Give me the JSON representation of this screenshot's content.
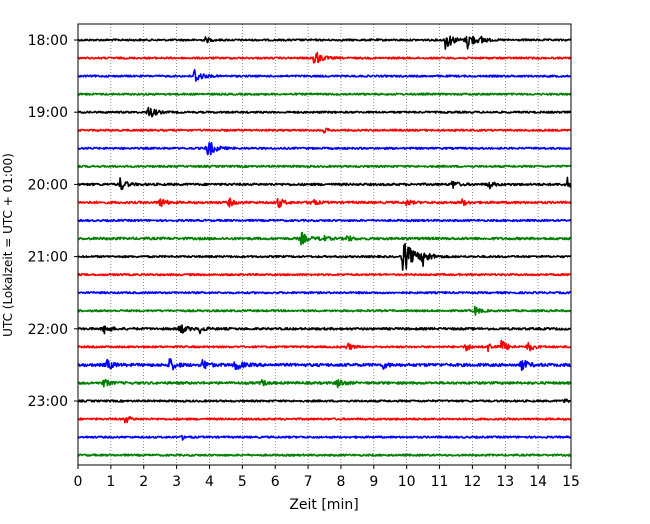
{
  "chart_data": {
    "type": "line",
    "xlabel": "Zeit  [min]",
    "ylabel": "UTC (Lokalzeit = UTC + 01:00)",
    "xlim": [
      0,
      15
    ],
    "x_ticks": [
      0,
      1,
      2,
      3,
      4,
      5,
      6,
      7,
      8,
      9,
      10,
      11,
      12,
      13,
      14,
      15
    ],
    "x_tick_labels": [
      "0",
      "1",
      "2",
      "3",
      "4",
      "5",
      "6",
      "7",
      "8",
      "9",
      "10",
      "11",
      "12",
      "13",
      "14",
      "15"
    ],
    "y_tick_labels": [
      "18:00",
      "19:00",
      "20:00",
      "21:00",
      "22:00",
      "23:00"
    ],
    "grid": "vertical dotted lines at each minute",
    "trace_colors": [
      "#000000",
      "#ff0000",
      "#0000ff",
      "#008000"
    ],
    "series": [
      {
        "start": "18:00",
        "color": "#000000",
        "noise": 1.0,
        "events": [
          {
            "x": 3.9,
            "a": 2.5
          },
          {
            "x": 11.2,
            "a": 9
          },
          {
            "x": 11.85,
            "a": 9
          },
          {
            "x": 12.3,
            "a": 3
          }
        ]
      },
      {
        "start": "18:15",
        "color": "#ff0000",
        "noise": 1.0,
        "events": [
          {
            "x": 7.2,
            "a": 8
          }
        ]
      },
      {
        "start": "18:30",
        "color": "#0000ff",
        "noise": 1.0,
        "events": [
          {
            "x": 3.55,
            "a": 8
          }
        ]
      },
      {
        "start": "18:45",
        "color": "#008000",
        "noise": 1.0,
        "events": []
      },
      {
        "start": "19:00",
        "color": "#000000",
        "noise": 1.0,
        "events": [
          {
            "x": 2.15,
            "a": 7
          }
        ]
      },
      {
        "start": "19:15",
        "color": "#ff0000",
        "noise": 1.0,
        "events": [
          {
            "x": 7.5,
            "a": 2
          }
        ]
      },
      {
        "start": "19:30",
        "color": "#0000ff",
        "noise": 1.0,
        "events": [
          {
            "x": 3.95,
            "a": 9
          }
        ]
      },
      {
        "start": "19:45",
        "color": "#008000",
        "noise": 1.0,
        "events": []
      },
      {
        "start": "20:00",
        "color": "#000000",
        "noise": 1.2,
        "events": [
          {
            "x": 1.3,
            "a": 6
          },
          {
            "x": 11.4,
            "a": 4
          },
          {
            "x": 12.5,
            "a": 4
          },
          {
            "x": 14.9,
            "a": 6
          }
        ]
      },
      {
        "start": "20:15",
        "color": "#ff0000",
        "noise": 1.2,
        "events": [
          {
            "x": 2.5,
            "a": 5
          },
          {
            "x": 4.6,
            "a": 4
          },
          {
            "x": 6.1,
            "a": 5
          },
          {
            "x": 7.1,
            "a": 4
          },
          {
            "x": 10.0,
            "a": 3
          },
          {
            "x": 11.7,
            "a": 3
          }
        ]
      },
      {
        "start": "20:30",
        "color": "#0000ff",
        "noise": 1.0,
        "events": []
      },
      {
        "start": "20:45",
        "color": "#008000",
        "noise": 1.3,
        "events": [
          {
            "x": 6.8,
            "a": 6
          },
          {
            "x": 7.4,
            "a": 4
          },
          {
            "x": 8.2,
            "a": 3
          }
        ]
      },
      {
        "start": "21:00",
        "color": "#000000",
        "noise": 1.0,
        "events": [
          {
            "x": 9.9,
            "a": 16
          },
          {
            "x": 10.5,
            "a": 7
          }
        ]
      },
      {
        "start": "21:15",
        "color": "#ff0000",
        "noise": 1.0,
        "events": []
      },
      {
        "start": "21:30",
        "color": "#0000ff",
        "noise": 1.0,
        "events": []
      },
      {
        "start": "21:45",
        "color": "#008000",
        "noise": 1.0,
        "events": [
          {
            "x": 12.1,
            "a": 4
          }
        ]
      },
      {
        "start": "22:00",
        "color": "#000000",
        "noise": 1.2,
        "events": [
          {
            "x": 0.8,
            "a": 5
          },
          {
            "x": 3.1,
            "a": 6
          },
          {
            "x": 3.7,
            "a": 4
          }
        ]
      },
      {
        "start": "22:15",
        "color": "#ff0000",
        "noise": 1.0,
        "events": [
          {
            "x": 8.2,
            "a": 4
          },
          {
            "x": 11.8,
            "a": 4
          },
          {
            "x": 12.5,
            "a": 4
          },
          {
            "x": 12.9,
            "a": 6
          },
          {
            "x": 13.7,
            "a": 5
          }
        ]
      },
      {
        "start": "22:30",
        "color": "#0000ff",
        "noise": 1.6,
        "events": [
          {
            "x": 0.9,
            "a": 5
          },
          {
            "x": 2.8,
            "a": 6
          },
          {
            "x": 3.8,
            "a": 5
          },
          {
            "x": 4.8,
            "a": 6
          },
          {
            "x": 9.3,
            "a": 3
          },
          {
            "x": 13.5,
            "a": 6
          }
        ]
      },
      {
        "start": "22:45",
        "color": "#008000",
        "noise": 1.3,
        "events": [
          {
            "x": 0.8,
            "a": 4
          },
          {
            "x": 5.6,
            "a": 3
          },
          {
            "x": 7.9,
            "a": 5
          }
        ]
      },
      {
        "start": "23:00",
        "color": "#000000",
        "noise": 1.0,
        "events": [
          {
            "x": 14.8,
            "a": 2
          }
        ]
      },
      {
        "start": "23:15",
        "color": "#ff0000",
        "noise": 1.0,
        "events": [
          {
            "x": 1.45,
            "a": 4
          }
        ]
      },
      {
        "start": "23:30",
        "color": "#0000ff",
        "noise": 1.0,
        "events": [
          {
            "x": 3.2,
            "a": 2
          }
        ]
      },
      {
        "start": "23:45",
        "color": "#008000",
        "noise": 1.0,
        "events": []
      }
    ]
  }
}
